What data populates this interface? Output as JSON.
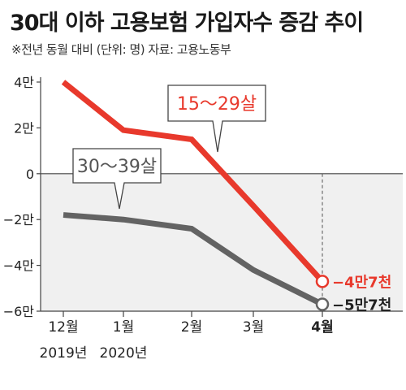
{
  "title": "30대 이하 고용보험 가입자수 증감 추이",
  "subtitle": "※전년 동월 대비 (단위: 명) 자료: 고용노동부",
  "chart_data": {
    "type": "line",
    "categories": [
      "12월",
      "1월",
      "2월",
      "3월",
      "4월"
    ],
    "category_years": [
      "2019년",
      "2020년",
      "",
      "",
      ""
    ],
    "highlight_category": "4월",
    "y_ticks": [
      40000,
      20000,
      0,
      -20000,
      -40000,
      -60000
    ],
    "y_tick_labels": [
      "4만",
      "2만",
      "0",
      "−2만",
      "−4만",
      "−6만"
    ],
    "ylim": [
      -60000,
      40000
    ],
    "series": [
      {
        "name": "15～29살",
        "color": "#e8392c",
        "values": [
          40000,
          19000,
          15000,
          -14000,
          -47000
        ],
        "end_label": "−4만7천"
      },
      {
        "name": "30～39살",
        "color": "#636363",
        "values": [
          -18000,
          -20000,
          -24000,
          -42000,
          -57000
        ],
        "end_label": "−5만7천"
      }
    ]
  }
}
